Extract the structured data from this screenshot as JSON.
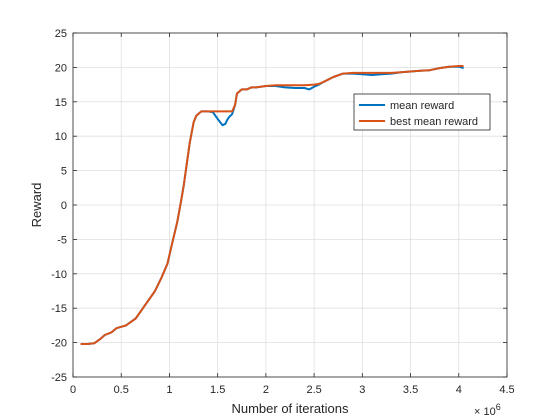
{
  "chart_data": {
    "type": "line",
    "title": "",
    "xlabel": "Number of iterations",
    "ylabel": "Reward",
    "x_exponent_label": "× 10",
    "x_exponent_power": "6",
    "xlim": [
      0,
      4.5
    ],
    "ylim": [
      -25,
      25
    ],
    "xticks": [
      0,
      0.5,
      1,
      1.5,
      2,
      2.5,
      3,
      3.5,
      4,
      4.5
    ],
    "xtick_labels": [
      "0",
      "0.5",
      "1",
      "1.5",
      "2",
      "2.5",
      "3",
      "3.5",
      "4",
      "4.5"
    ],
    "yticks": [
      -25,
      -20,
      -15,
      -10,
      -5,
      0,
      5,
      10,
      15,
      20,
      25
    ],
    "ytick_labels": [
      "-25",
      "-20",
      "-15",
      "-10",
      "-5",
      "0",
      "5",
      "10",
      "15",
      "20",
      "25"
    ],
    "grid": true,
    "legend_position": "right",
    "series": [
      {
        "name": "mean reward",
        "color": "#0072BD",
        "x": [
          0.08,
          0.15,
          0.22,
          0.28,
          0.33,
          0.4,
          0.45,
          0.55,
          0.65,
          0.75,
          0.85,
          0.92,
          0.98,
          1.03,
          1.08,
          1.12,
          1.15,
          1.18,
          1.21,
          1.25,
          1.28,
          1.33,
          1.4,
          1.45,
          1.5,
          1.55,
          1.58,
          1.6,
          1.62,
          1.65,
          1.68,
          1.7,
          1.75,
          1.8,
          1.85,
          1.9,
          2.0,
          2.1,
          2.2,
          2.3,
          2.4,
          2.45,
          2.5,
          2.55,
          2.6,
          2.7,
          2.8,
          2.9,
          3.0,
          3.1,
          3.2,
          3.3,
          3.4,
          3.5,
          3.6,
          3.7,
          3.8,
          3.9,
          4.0,
          4.05
        ],
        "y": [
          -20.2,
          -20.2,
          -20.1,
          -19.5,
          -18.9,
          -18.5,
          -17.9,
          -17.5,
          -16.5,
          -14.5,
          -12.5,
          -10.5,
          -8.5,
          -5.5,
          -2.5,
          0.5,
          3,
          6,
          9,
          12,
          13,
          13.6,
          13.6,
          13.5,
          12.5,
          11.6,
          11.8,
          12.4,
          12.8,
          13.2,
          14.5,
          16.2,
          16.8,
          16.8,
          17.1,
          17.1,
          17.3,
          17.3,
          17.1,
          17.0,
          17.0,
          16.8,
          17.2,
          17.5,
          17.9,
          18.6,
          19.1,
          19.1,
          19.0,
          18.9,
          19.0,
          19.1,
          19.3,
          19.4,
          19.5,
          19.6,
          19.9,
          20.1,
          20.1,
          19.9
        ]
      },
      {
        "name": "best mean reward",
        "color": "#D95319",
        "x": [
          0.08,
          0.15,
          0.22,
          0.28,
          0.33,
          0.4,
          0.45,
          0.55,
          0.65,
          0.75,
          0.85,
          0.92,
          0.98,
          1.03,
          1.08,
          1.12,
          1.15,
          1.18,
          1.21,
          1.25,
          1.28,
          1.33,
          1.4,
          1.45,
          1.5,
          1.55,
          1.6,
          1.65,
          1.68,
          1.7,
          1.75,
          1.8,
          1.85,
          1.9,
          2.0,
          2.1,
          2.2,
          2.3,
          2.4,
          2.5,
          2.55,
          2.6,
          2.7,
          2.8,
          2.9,
          3.0,
          3.1,
          3.2,
          3.3,
          3.4,
          3.5,
          3.6,
          3.7,
          3.8,
          3.9,
          4.0,
          4.05
        ],
        "y": [
          -20.2,
          -20.2,
          -20.1,
          -19.5,
          -18.9,
          -18.5,
          -17.9,
          -17.5,
          -16.5,
          -14.5,
          -12.5,
          -10.5,
          -8.5,
          -5.5,
          -2.5,
          0.5,
          3,
          6,
          9,
          12,
          13,
          13.6,
          13.6,
          13.6,
          13.6,
          13.6,
          13.6,
          13.6,
          14.5,
          16.2,
          16.8,
          16.8,
          17.1,
          17.1,
          17.3,
          17.4,
          17.4,
          17.4,
          17.4,
          17.5,
          17.6,
          17.9,
          18.6,
          19.1,
          19.2,
          19.2,
          19.2,
          19.2,
          19.2,
          19.3,
          19.4,
          19.5,
          19.6,
          19.9,
          20.1,
          20.2,
          20.2
        ]
      }
    ]
  }
}
